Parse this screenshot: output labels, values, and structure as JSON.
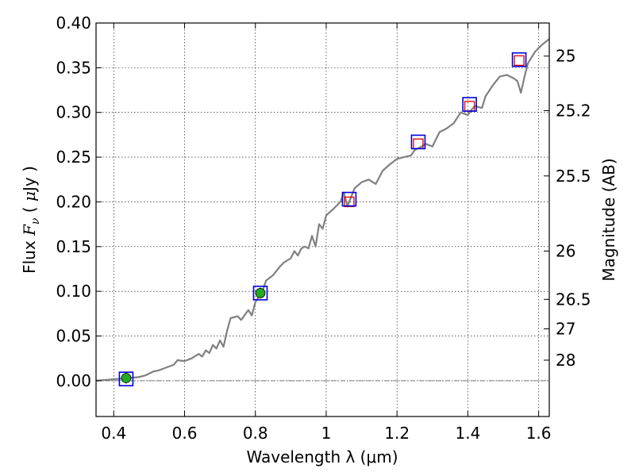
{
  "chart_data": {
    "type": "line",
    "title": "",
    "xlabel": "Wavelength  λ (μm)",
    "ylabel": "Flux  F_ν  ( μJy )",
    "ylabel_parts": {
      "pre": "Flux ",
      "F": "F",
      "nu": "ν",
      "mid": " ( ",
      "mu": "μ",
      "post": "Jy )"
    },
    "y2label": "Magnitude (AB)",
    "xlim": [
      0.35,
      1.63
    ],
    "ylim": [
      -0.04,
      0.4
    ],
    "grid": true,
    "x_ticks": [
      {
        "value": 0.4,
        "label": "0.4"
      },
      {
        "value": 0.6,
        "label": "0.6"
      },
      {
        "value": 0.8,
        "label": "0.8"
      },
      {
        "value": 1.0,
        "label": "1"
      },
      {
        "value": 1.2,
        "label": "1.2"
      },
      {
        "value": 1.4,
        "label": "1.4"
      },
      {
        "value": 1.6,
        "label": "1.6"
      }
    ],
    "y_ticks": [
      {
        "value": 0.0,
        "label": "0.00"
      },
      {
        "value": 0.05,
        "label": "0.05"
      },
      {
        "value": 0.1,
        "label": "0.10"
      },
      {
        "value": 0.15,
        "label": "0.15"
      },
      {
        "value": 0.2,
        "label": "0.20"
      },
      {
        "value": 0.25,
        "label": "0.25"
      },
      {
        "value": 0.3,
        "label": "0.30"
      },
      {
        "value": 0.35,
        "label": "0.35"
      },
      {
        "value": 0.4,
        "label": "0.40"
      }
    ],
    "y2_ticks": [
      {
        "label": "25",
        "flux": 0.363
      },
      {
        "label": "25.2",
        "flux": 0.302
      },
      {
        "label": "25.5",
        "flux": 0.229
      },
      {
        "label": "26",
        "flux": 0.145
      },
      {
        "label": "26.5",
        "flux": 0.091
      },
      {
        "label": "27",
        "flux": 0.058
      },
      {
        "label": "28",
        "flux": 0.023
      }
    ],
    "spectrum": {
      "color": "#808080",
      "points": [
        [
          0.35,
          0.0
        ],
        [
          0.38,
          0.001
        ],
        [
          0.41,
          0.002
        ],
        [
          0.44,
          0.003
        ],
        [
          0.47,
          0.004
        ],
        [
          0.49,
          0.006
        ],
        [
          0.51,
          0.01
        ],
        [
          0.53,
          0.012
        ],
        [
          0.55,
          0.015
        ],
        [
          0.57,
          0.018
        ],
        [
          0.58,
          0.023
        ],
        [
          0.6,
          0.022
        ],
        [
          0.62,
          0.025
        ],
        [
          0.64,
          0.03
        ],
        [
          0.65,
          0.027
        ],
        [
          0.66,
          0.034
        ],
        [
          0.67,
          0.031
        ],
        [
          0.68,
          0.04
        ],
        [
          0.69,
          0.036
        ],
        [
          0.7,
          0.045
        ],
        [
          0.71,
          0.038
        ],
        [
          0.72,
          0.056
        ],
        [
          0.73,
          0.07
        ],
        [
          0.75,
          0.072
        ],
        [
          0.76,
          0.068
        ],
        [
          0.78,
          0.079
        ],
        [
          0.79,
          0.073
        ],
        [
          0.8,
          0.088
        ],
        [
          0.82,
          0.1
        ],
        [
          0.83,
          0.112
        ],
        [
          0.85,
          0.118
        ],
        [
          0.87,
          0.128
        ],
        [
          0.88,
          0.132
        ],
        [
          0.9,
          0.137
        ],
        [
          0.91,
          0.145
        ],
        [
          0.92,
          0.14
        ],
        [
          0.93,
          0.148
        ],
        [
          0.94,
          0.15
        ],
        [
          0.95,
          0.148
        ],
        [
          0.96,
          0.162
        ],
        [
          0.97,
          0.15
        ],
        [
          0.98,
          0.175
        ],
        [
          0.99,
          0.17
        ],
        [
          1.0,
          0.185
        ],
        [
          1.02,
          0.192
        ],
        [
          1.04,
          0.2
        ],
        [
          1.05,
          0.21
        ],
        [
          1.06,
          0.195
        ],
        [
          1.07,
          0.205
        ],
        [
          1.08,
          0.215
        ],
        [
          1.1,
          0.222
        ],
        [
          1.12,
          0.225
        ],
        [
          1.14,
          0.22
        ],
        [
          1.16,
          0.235
        ],
        [
          1.18,
          0.242
        ],
        [
          1.2,
          0.248
        ],
        [
          1.22,
          0.25
        ],
        [
          1.24,
          0.252
        ],
        [
          1.25,
          0.258
        ],
        [
          1.27,
          0.262
        ],
        [
          1.28,
          0.265
        ],
        [
          1.3,
          0.262
        ],
        [
          1.32,
          0.278
        ],
        [
          1.34,
          0.282
        ],
        [
          1.36,
          0.288
        ],
        [
          1.38,
          0.3
        ],
        [
          1.4,
          0.297
        ],
        [
          1.41,
          0.303
        ],
        [
          1.42,
          0.307
        ],
        [
          1.44,
          0.305
        ],
        [
          1.45,
          0.318
        ],
        [
          1.47,
          0.33
        ],
        [
          1.49,
          0.34
        ],
        [
          1.51,
          0.342
        ],
        [
          1.53,
          0.338
        ],
        [
          1.54,
          0.335
        ],
        [
          1.55,
          0.322
        ],
        [
          1.56,
          0.34
        ],
        [
          1.57,
          0.355
        ],
        [
          1.59,
          0.368
        ],
        [
          1.61,
          0.376
        ],
        [
          1.63,
          0.382
        ]
      ]
    },
    "detections": {
      "fill": "#22aa22",
      "points": [
        {
          "x": 0.435,
          "y": 0.003,
          "err": 0.006
        },
        {
          "x": 0.814,
          "y": 0.098,
          "err": 0.006
        }
      ]
    },
    "model_boxes": {
      "stroke": "#0000dd",
      "points": [
        {
          "x": 0.435,
          "y": 0.002
        },
        {
          "x": 0.814,
          "y": 0.098
        },
        {
          "x": 1.065,
          "y": 0.203
        },
        {
          "x": 1.26,
          "y": 0.267
        },
        {
          "x": 1.405,
          "y": 0.309
        },
        {
          "x": 1.545,
          "y": 0.359
        }
      ]
    },
    "upper_limits": {
      "stroke": "#dd0000",
      "points": [
        {
          "x": 1.065,
          "y": 0.2
        },
        {
          "x": 1.26,
          "y": 0.265
        },
        {
          "x": 1.405,
          "y": 0.307
        },
        {
          "x": 1.545,
          "y": 0.358
        }
      ]
    }
  }
}
